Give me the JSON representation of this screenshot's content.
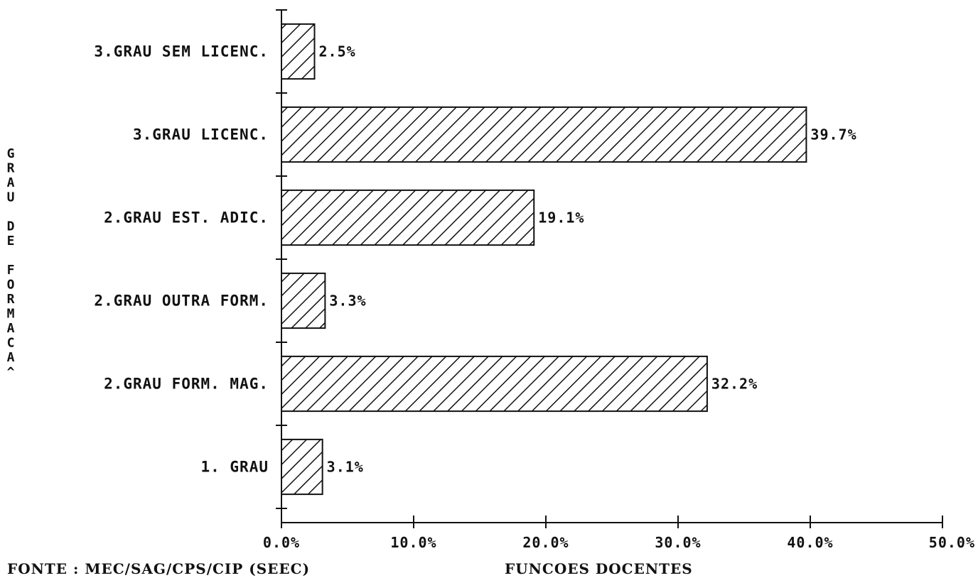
{
  "chart_data": {
    "type": "bar",
    "orientation": "horizontal",
    "categories": [
      "3.GRAU SEM LICENC.",
      "3.GRAU LICENC.",
      "2.GRAU EST. ADIC.",
      "2.GRAU OUTRA FORM.",
      "2.GRAU FORM. MAG.",
      "1. GRAU"
    ],
    "values": [
      2.5,
      39.7,
      19.1,
      3.3,
      32.2,
      3.1
    ],
    "value_labels": [
      "2.5%",
      "39.7%",
      "19.1%",
      "3.3%",
      "32.2%",
      "3.1%"
    ],
    "xlabel": "FUNCOES DOCENTES",
    "ylabel": "GRAU DE FORMACAO",
    "ylabel_chars": [
      "G",
      "R",
      "A",
      "U",
      "",
      "D",
      "E",
      "",
      "F",
      "O",
      "R",
      "M",
      "A",
      "C",
      "A",
      "^"
    ],
    "xlim": [
      0,
      50
    ],
    "xticks": [
      0,
      10,
      20,
      30,
      40,
      50
    ],
    "xtick_labels": [
      "0.0%",
      "10.0%",
      "20.0%",
      "30.0%",
      "40.0%",
      "50.0%"
    ],
    "source": "FONTE : MEC/SAG/CPS/CIP (SEEC)",
    "fill": "diagonal-hatch",
    "grid": false,
    "colors": {
      "ink": "#111111",
      "background": "#ffffff"
    }
  }
}
